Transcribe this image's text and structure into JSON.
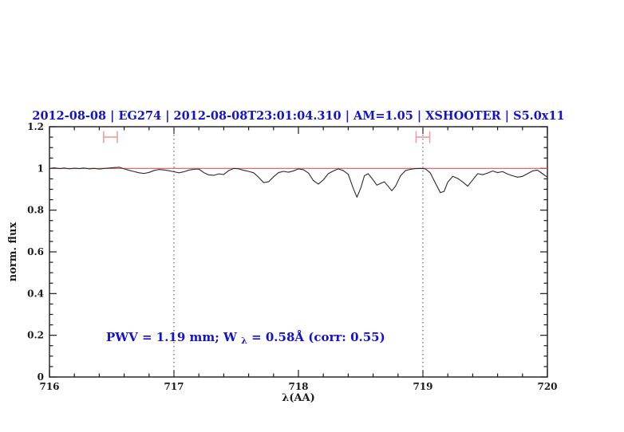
{
  "colors": {
    "background": "#ffffff",
    "title_blue": "#1212d0",
    "axis": "#1a1a1a",
    "spectrum": "#2a2a2a",
    "continuum_red": "#e05757",
    "marker_red": "#f49b9b",
    "vline_gray": "#4a4a4a"
  },
  "chart_data": {
    "type": "line",
    "title": "2012-08-08 | EG274 | 2012-08-08T23:01:04.310 | AM=1.05 | XSHOOTER | S5.0x11",
    "xlabel": "λ(AA)",
    "ylabel": "norm. flux",
    "xlim": [
      716,
      720
    ],
    "ylim": [
      0,
      1.2
    ],
    "grid": false,
    "legend": "none",
    "xticks": {
      "major": [
        716,
        717,
        718,
        719,
        720
      ],
      "labels": [
        "716",
        "717",
        "718",
        "719",
        "720"
      ],
      "minor_step": 0.2
    },
    "yticks": {
      "major": [
        0,
        0.2,
        0.4,
        0.6,
        0.8,
        1,
        1.2
      ],
      "labels": [
        "0",
        "0.2",
        "0.4",
        "0.6",
        "0.8",
        "1",
        "1.2"
      ],
      "minor_step": 0.05
    },
    "vlines": {
      "x": [
        717,
        719
      ],
      "style": "dotted"
    },
    "continuum_line": {
      "y": 1.0
    },
    "range_markers": [
      {
        "x_center": 716.49,
        "x_half_width": 0.055,
        "y": 1.15,
        "cap_half_height": 0.028
      },
      {
        "x_center": 719.0,
        "x_half_width": 0.055,
        "y": 1.15,
        "cap_half_height": 0.028
      }
    ],
    "annotation": {
      "prefix": "PWV = 1.19 mm; W",
      "sub": "λ",
      "suffix": " = 0.58Å (corr: 0.55)",
      "pwv_mm": 1.19,
      "w_lambda_angstrom": 0.58,
      "corr": 0.55
    },
    "series": [
      {
        "name": "normalized-spectrum",
        "points": [
          [
            716.0,
            1.0
          ],
          [
            716.04,
            1.003
          ],
          [
            716.08,
            0.999
          ],
          [
            716.12,
            1.002
          ],
          [
            716.16,
            0.998
          ],
          [
            716.2,
            1.001
          ],
          [
            716.24,
            0.999
          ],
          [
            716.28,
            1.002
          ],
          [
            716.32,
            0.998
          ],
          [
            716.36,
            1.0
          ],
          [
            716.4,
            0.997
          ],
          [
            716.44,
            1.0
          ],
          [
            716.48,
            1.002
          ],
          [
            716.52,
            1.004
          ],
          [
            716.56,
            1.006
          ],
          [
            716.6,
            0.998
          ],
          [
            716.64,
            0.991
          ],
          [
            716.68,
            0.985
          ],
          [
            716.72,
            0.979
          ],
          [
            716.76,
            0.976
          ],
          [
            716.8,
            0.981
          ],
          [
            716.84,
            0.99
          ],
          [
            716.88,
            0.995
          ],
          [
            716.92,
            0.993
          ],
          [
            716.96,
            0.989
          ],
          [
            717.0,
            0.984
          ],
          [
            717.04,
            0.979
          ],
          [
            717.08,
            0.984
          ],
          [
            717.12,
            0.992
          ],
          [
            717.16,
            0.996
          ],
          [
            717.2,
            0.997
          ],
          [
            717.24,
            0.98
          ],
          [
            717.28,
            0.969
          ],
          [
            717.32,
            0.967
          ],
          [
            717.36,
            0.974
          ],
          [
            717.4,
            0.971
          ],
          [
            717.44,
            0.99
          ],
          [
            717.48,
            1.0
          ],
          [
            717.52,
            0.998
          ],
          [
            717.56,
            0.991
          ],
          [
            717.6,
            0.986
          ],
          [
            717.64,
            0.979
          ],
          [
            717.68,
            0.958
          ],
          [
            717.72,
            0.932
          ],
          [
            717.76,
            0.936
          ],
          [
            717.8,
            0.96
          ],
          [
            717.84,
            0.98
          ],
          [
            717.88,
            0.986
          ],
          [
            717.92,
            0.982
          ],
          [
            717.96,
            0.988
          ],
          [
            718.0,
            0.998
          ],
          [
            718.04,
            0.994
          ],
          [
            718.08,
            0.978
          ],
          [
            718.12,
            0.942
          ],
          [
            718.16,
            0.925
          ],
          [
            718.2,
            0.945
          ],
          [
            718.24,
            0.975
          ],
          [
            718.28,
            0.988
          ],
          [
            718.32,
            0.998
          ],
          [
            718.36,
            0.99
          ],
          [
            718.4,
            0.972
          ],
          [
            718.44,
            0.905
          ],
          [
            718.47,
            0.862
          ],
          [
            718.5,
            0.905
          ],
          [
            718.53,
            0.965
          ],
          [
            718.56,
            0.975
          ],
          [
            718.6,
            0.945
          ],
          [
            718.63,
            0.92
          ],
          [
            718.66,
            0.928
          ],
          [
            718.69,
            0.936
          ],
          [
            718.72,
            0.915
          ],
          [
            718.75,
            0.893
          ],
          [
            718.78,
            0.915
          ],
          [
            718.82,
            0.965
          ],
          [
            718.86,
            0.99
          ],
          [
            718.9,
            0.996
          ],
          [
            718.94,
            0.999
          ],
          [
            718.98,
            1.0
          ],
          [
            719.02,
            0.998
          ],
          [
            719.06,
            0.978
          ],
          [
            719.1,
            0.93
          ],
          [
            719.14,
            0.884
          ],
          [
            719.17,
            0.89
          ],
          [
            719.2,
            0.935
          ],
          [
            719.24,
            0.962
          ],
          [
            719.28,
            0.952
          ],
          [
            719.32,
            0.935
          ],
          [
            719.36,
            0.915
          ],
          [
            719.4,
            0.945
          ],
          [
            719.44,
            0.975
          ],
          [
            719.48,
            0.97
          ],
          [
            719.52,
            0.978
          ],
          [
            719.56,
            0.988
          ],
          [
            719.6,
            0.98
          ],
          [
            719.64,
            0.985
          ],
          [
            719.68,
            0.973
          ],
          [
            719.72,
            0.965
          ],
          [
            719.76,
            0.958
          ],
          [
            719.8,
            0.962
          ],
          [
            719.84,
            0.975
          ],
          [
            719.88,
            0.988
          ],
          [
            719.92,
            0.992
          ],
          [
            719.96,
            0.975
          ],
          [
            720.0,
            0.958
          ]
        ]
      }
    ]
  }
}
